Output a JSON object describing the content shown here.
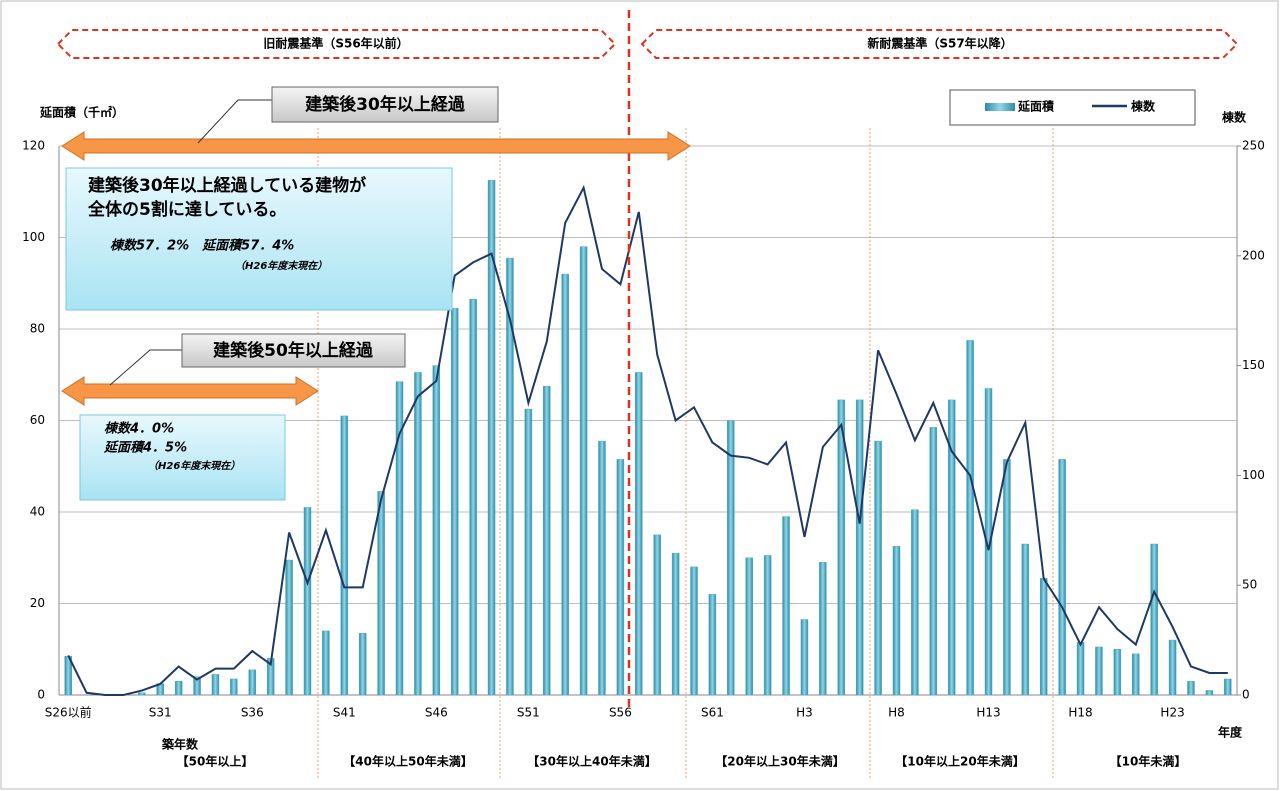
{
  "chart_data": {
    "type": "combo",
    "era_labels": [
      "旧耐震基準（S56年以前）",
      "新耐震基準（S57年以降）"
    ],
    "ylabel": "延面積（千㎡）",
    "y2label": "棟数",
    "xlabel": "年度",
    "group_title": "築年数",
    "age_groups": [
      "【50年以上】",
      "【40年以上50年未満】",
      "【30年以上40年未満】",
      "【20年以上30年未満】",
      "【10年以上20年未満】",
      "【10年未満】"
    ],
    "arrow_labels": [
      "建築後30年以上経過",
      "建築後50年以上経過"
    ],
    "callouts": [
      {
        "lines": [
          "建築後30年以上経過している建物が",
          "全体の5割に達している。",
          "棟数57．2%　延面積57．4%",
          "（H26年度末現在）"
        ]
      },
      {
        "lines": [
          "棟数4．0%",
          "延面積4．5%",
          "（H26年度末現在）"
        ]
      }
    ],
    "categories": [
      "S26以前",
      null,
      null,
      null,
      null,
      "S31",
      null,
      null,
      null,
      null,
      "S36",
      null,
      null,
      null,
      null,
      "S41",
      null,
      null,
      null,
      null,
      "S46",
      null,
      null,
      null,
      null,
      "S51",
      null,
      null,
      null,
      null,
      "S56",
      null,
      null,
      null,
      null,
      "S61",
      null,
      null,
      null,
      null,
      "H3",
      null,
      null,
      null,
      null,
      "H8",
      null,
      null,
      null,
      null,
      "H13",
      null,
      null,
      null,
      null,
      "H18",
      null,
      null,
      null,
      null,
      "H23",
      null,
      null,
      null
    ],
    "series": [
      {
        "name": "延面積",
        "type": "bar",
        "color": "#4bacc6",
        "values": [
          8.5,
          0,
          0,
          0,
          0.5,
          2.5,
          3,
          4,
          4.5,
          3.5,
          5.5,
          8,
          29.5,
          41,
          14,
          61,
          13.5,
          44.5,
          68.5,
          70.5,
          72,
          84.5,
          86.5,
          112.5,
          95.5,
          62.5,
          67.5,
          92,
          98,
          55.5,
          51.5,
          70.5,
          35,
          31,
          28,
          22,
          60,
          30,
          30.5,
          39,
          16.5,
          29,
          64.5,
          64.5,
          55.5,
          32.5,
          40.5,
          58.5,
          64.5,
          77.5,
          67,
          51.5,
          33,
          25.5,
          51.5,
          11.5,
          10.5,
          10,
          9,
          33,
          12,
          3,
          1,
          3.5
        ]
      },
      {
        "name": "棟数",
        "type": "line",
        "axis": "y2",
        "color": "#1f3864",
        "values": [
          18,
          1,
          0,
          0,
          2,
          5,
          13,
          7,
          12,
          12,
          20,
          14,
          74,
          51,
          75,
          49,
          49,
          89,
          119,
          136,
          143,
          191,
          197,
          201,
          171,
          133,
          161,
          215,
          231,
          194,
          187,
          220,
          155,
          125,
          131,
          115,
          109,
          108,
          105,
          115,
          72,
          113,
          123,
          78,
          157,
          137,
          116,
          133,
          111,
          100,
          66,
          106,
          124,
          53,
          40,
          23,
          40,
          30,
          23,
          47,
          31,
          13,
          10,
          10
        ]
      }
    ],
    "ylim": [
      0,
      120
    ],
    "yticks": [
      0,
      20,
      40,
      60,
      80,
      100,
      120
    ],
    "y2lim": [
      0,
      250
    ],
    "y2ticks": [
      0,
      50,
      100,
      150,
      200,
      250
    ],
    "grid": true
  }
}
